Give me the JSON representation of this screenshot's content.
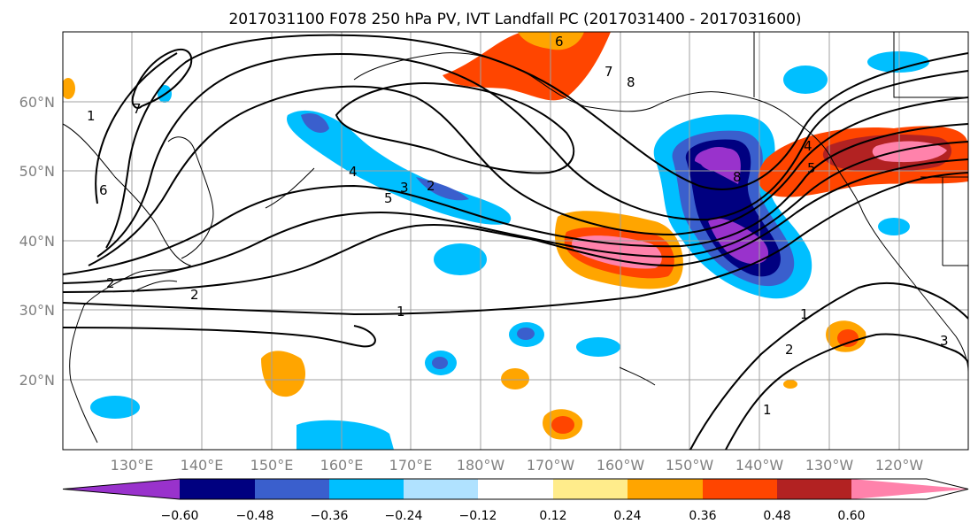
{
  "title": "2017031100 F078 250 hPa PV, IVT Landfall PC (2017031400 - 2017031600)",
  "map": {
    "lon_range": [
      120,
      250
    ],
    "lat_range": [
      10,
      70
    ],
    "lon_ticks": [
      "130°E",
      "140°E",
      "150°E",
      "160°E",
      "170°E",
      "180°W",
      "170°W",
      "160°W",
      "150°W",
      "140°W",
      "130°W",
      "120°W"
    ],
    "lat_ticks": [
      "20°N",
      "30°N",
      "40°N",
      "50°N",
      "60°N"
    ],
    "contour_labels": [
      "1",
      "2",
      "3",
      "4",
      "5",
      "6",
      "7",
      "8",
      "1",
      "2",
      "1",
      "2",
      "3",
      "4",
      "5",
      "6",
      "7",
      "8",
      "2",
      "1"
    ]
  },
  "colorbar": {
    "ticks": [
      "−0.60",
      "−0.48",
      "−0.36",
      "−0.24",
      "−0.12",
      "0.12",
      "0.24",
      "0.36",
      "0.48",
      "0.60"
    ],
    "colors": [
      "#9932cc",
      "#000080",
      "#3a5fcd",
      "#00bfff",
      "#b0e2ff",
      "#ffffff",
      "#ffec8b",
      "#ffa500",
      "#ff4500",
      "#b22222",
      "#ff82ab"
    ]
  },
  "colors": {
    "positive_max": "#ff82ab",
    "negative_max": "#9932cc",
    "grid": "#a0a0a0",
    "coast": "#000000"
  }
}
